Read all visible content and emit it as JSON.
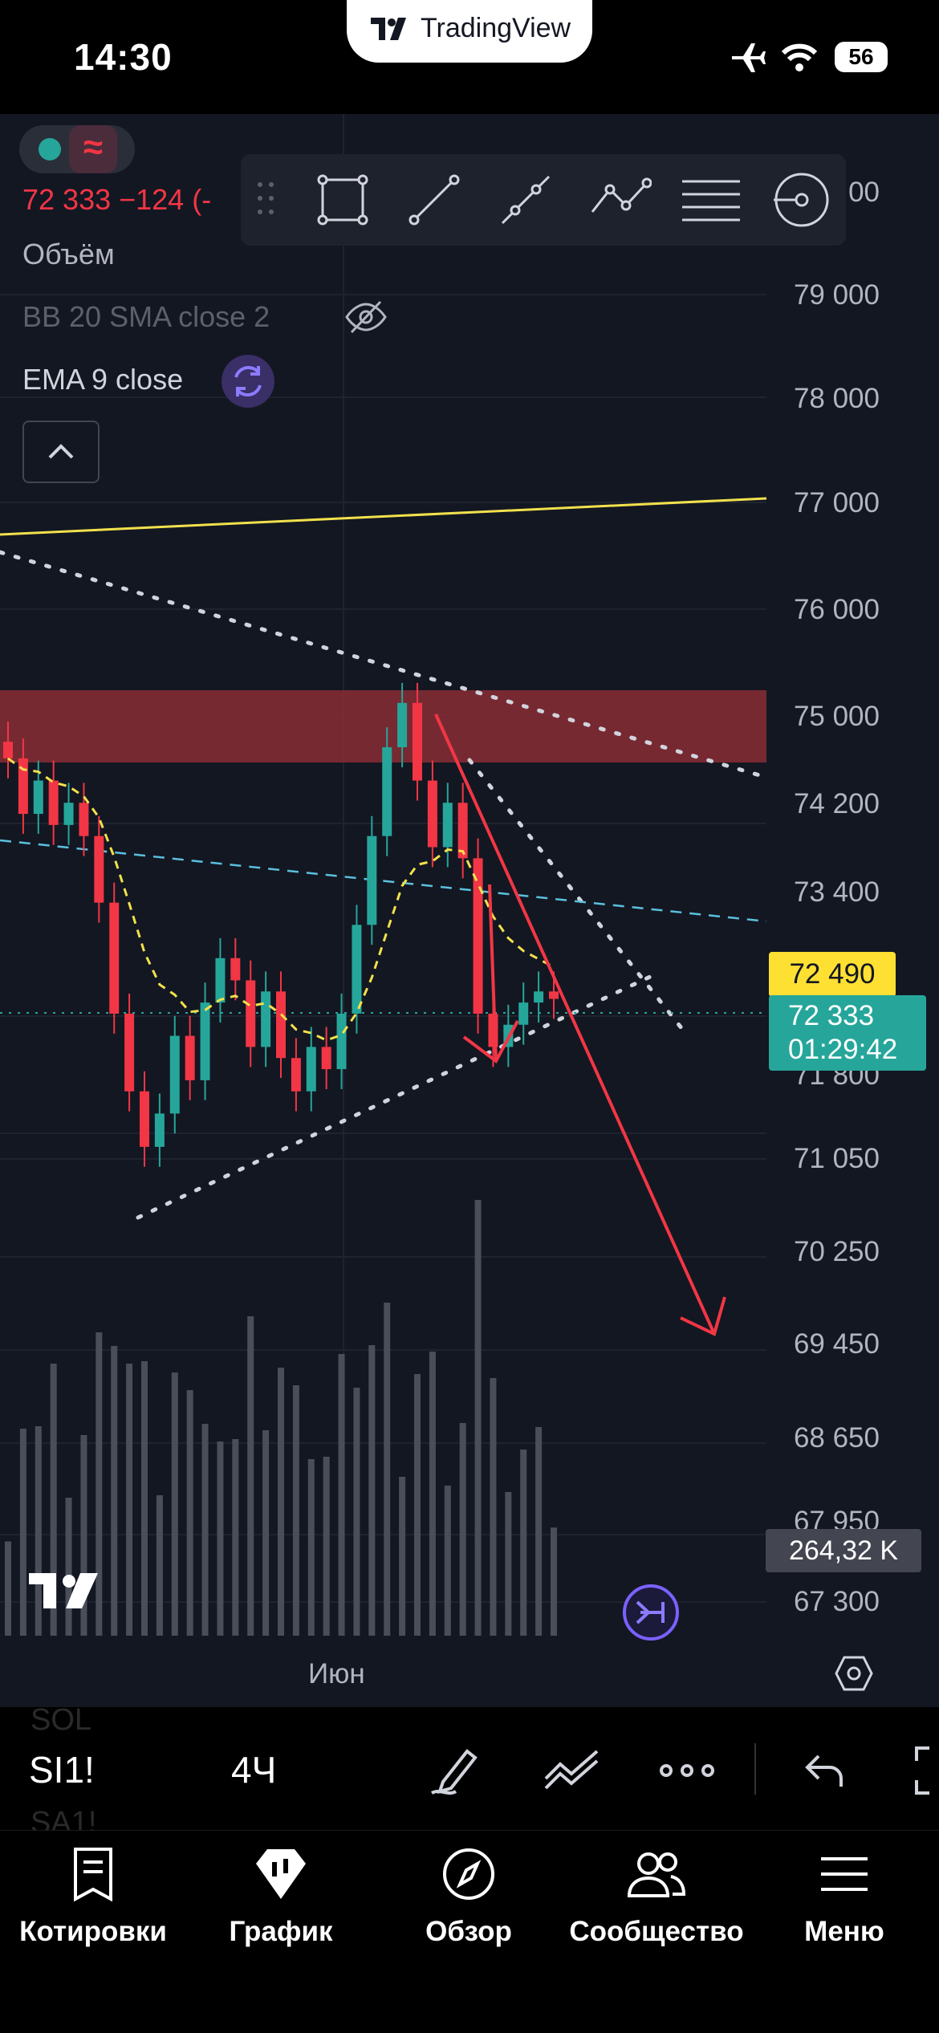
{
  "status_bar": {
    "time": "14:30",
    "app_pill": "TradingView",
    "battery": "56",
    "icons": [
      "airplane-icon",
      "wifi-icon",
      "battery-icon"
    ]
  },
  "legend": {
    "price_line": "72 333 −124 (-",
    "volume": "Объём",
    "bb": "BB 20 SMA close 2",
    "ema": "EMA 9 close"
  },
  "drawing_tools": [
    "rectangle-icon",
    "trend-line-icon",
    "ray-icon",
    "path-icon",
    "fib-levels-icon",
    "brush-icon"
  ],
  "price_axis": {
    "top_partial": "00",
    "labels": [
      "79 000",
      "78 000",
      "77 000",
      "76 000",
      "75 000",
      "74 200",
      "73 400",
      "71 800",
      "71 050",
      "70 250",
      "69 450",
      "68 650",
      "67 950",
      "67 300"
    ]
  },
  "badges": {
    "alert_price": "72 490",
    "last_price": "72 333",
    "countdown": "01:29:42",
    "volume": "264,32 K"
  },
  "time_axis": {
    "label": "Июн"
  },
  "toolbar": {
    "symbol": "SI1!",
    "interval": "4Ч",
    "ghost_above": "SOL",
    "ghost_below": "SA1!"
  },
  "tabs": [
    {
      "label": "Котировки",
      "icon": "quotes-icon"
    },
    {
      "label": "График",
      "icon": "chart-icon"
    },
    {
      "label": "Обзор",
      "icon": "compass-icon"
    },
    {
      "label": "Сообщество",
      "icon": "community-icon"
    },
    {
      "label": "Меню",
      "icon": "menu-icon"
    }
  ],
  "colors": {
    "background": "#131722",
    "up": "#26a69a",
    "down": "#f23645",
    "alert": "#fee033",
    "accent": "#7b61ff"
  },
  "chart_data": {
    "type": "candlestick",
    "symbol": "SI1!",
    "interval": "4Ч",
    "ylim": [
      67000,
      79800
    ],
    "last_price": 72333,
    "change": -124,
    "alert_level": 72490,
    "zone": {
      "from": 74550,
      "to": 75250
    },
    "bars_close": [
      74500,
      74000,
      74300,
      73900,
      74100,
      73800,
      73200,
      72200,
      71500,
      71000,
      71300,
      72000,
      71600,
      72300,
      72700,
      72500,
      71900,
      72400,
      71800,
      71500,
      71900,
      71700,
      72200,
      73000,
      73800,
      74600,
      75000,
      74300,
      73700,
      74100,
      73600,
      72200,
      71900,
      72100,
      72300,
      72400,
      72333
    ],
    "volume_peak": 264.32
  }
}
